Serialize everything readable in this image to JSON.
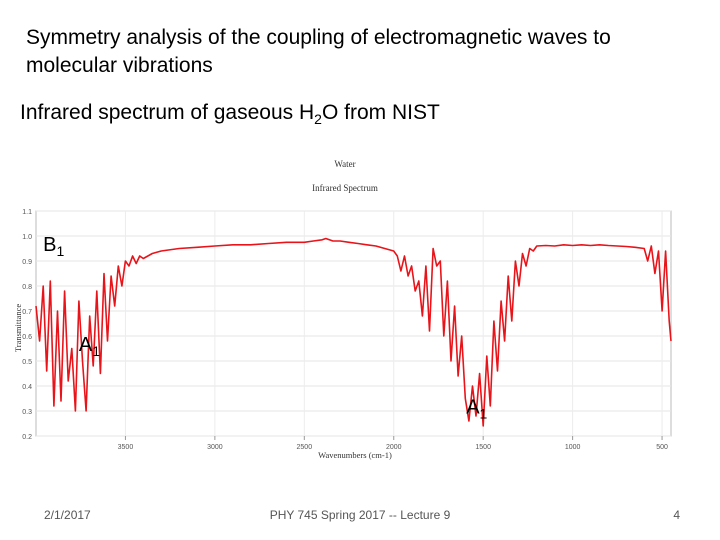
{
  "slide": {
    "title": "Symmetry analysis of the coupling of electromagnetic waves to molecular vibrations",
    "subtitle_pre": "Infrared spectrum of gaseous H",
    "subtitle_sub": "2",
    "subtitle_post": "O from NIST"
  },
  "footer": {
    "date": "2/1/2017",
    "center": "PHY 745  Spring 2017 -- Lecture 9",
    "page": "4"
  },
  "chart_data": {
    "type": "line",
    "title": "Water",
    "subtitle": "Infrared Spectrum",
    "xlabel": "Wavenumbers (cm-1)",
    "ylabel": "Transmittance",
    "xlim": [
      4000,
      450
    ],
    "ylim": [
      0.2,
      1.1
    ],
    "x_ticks": [
      "3500",
      "3000",
      "2500",
      "2000",
      "1500",
      "1000",
      "500"
    ],
    "y_ticks": [
      "1.1",
      "1.0",
      "0.9",
      "0.8",
      "0.7",
      "0.6",
      "0.5",
      "0.4",
      "0.3",
      "0.2"
    ],
    "line_color": "#e8141a",
    "annotations": [
      {
        "label": "B",
        "sub": "1",
        "x": 3960,
        "y": 0.94
      },
      {
        "label": "A",
        "sub": "1",
        "x": 3760,
        "y": 0.54
      },
      {
        "label": "A",
        "sub": "1",
        "x": 1595,
        "y": 0.29
      }
    ],
    "series": [
      {
        "x": [
          4000,
          3980,
          3960,
          3940,
          3920,
          3900,
          3880,
          3860,
          3840,
          3820,
          3800,
          3780,
          3760,
          3740,
          3720,
          3700,
          3680,
          3660,
          3640,
          3620,
          3600,
          3580,
          3560,
          3540,
          3520,
          3500,
          3480,
          3460,
          3440,
          3420,
          3400,
          3350,
          3300,
          3200,
          3100,
          3000,
          2900,
          2800,
          2700,
          2600,
          2500,
          2450,
          2400,
          2380,
          2360,
          2340,
          2300,
          2250,
          2200,
          2150,
          2100,
          2050,
          2000,
          1980,
          1960,
          1940,
          1920,
          1900,
          1880,
          1860,
          1840,
          1820,
          1800,
          1780,
          1760,
          1740,
          1720,
          1700,
          1680,
          1660,
          1640,
          1620,
          1600,
          1580,
          1560,
          1540,
          1520,
          1500,
          1480,
          1460,
          1440,
          1420,
          1400,
          1380,
          1360,
          1340,
          1320,
          1300,
          1280,
          1260,
          1240,
          1220,
          1200,
          1150,
          1100,
          1050,
          1000,
          950,
          900,
          850,
          800,
          750,
          700,
          650,
          600,
          580,
          560,
          540,
          520,
          500,
          480,
          460,
          450
        ],
        "y": [
          0.72,
          0.58,
          0.8,
          0.46,
          0.82,
          0.32,
          0.7,
          0.34,
          0.78,
          0.42,
          0.55,
          0.3,
          0.74,
          0.5,
          0.3,
          0.68,
          0.48,
          0.78,
          0.45,
          0.85,
          0.58,
          0.84,
          0.72,
          0.88,
          0.8,
          0.9,
          0.88,
          0.92,
          0.89,
          0.92,
          0.91,
          0.93,
          0.94,
          0.95,
          0.955,
          0.96,
          0.965,
          0.965,
          0.97,
          0.975,
          0.975,
          0.98,
          0.985,
          0.99,
          0.985,
          0.98,
          0.98,
          0.975,
          0.97,
          0.965,
          0.96,
          0.95,
          0.94,
          0.92,
          0.86,
          0.92,
          0.84,
          0.88,
          0.78,
          0.82,
          0.68,
          0.88,
          0.62,
          0.95,
          0.88,
          0.9,
          0.6,
          0.82,
          0.5,
          0.72,
          0.44,
          0.6,
          0.35,
          0.26,
          0.4,
          0.28,
          0.45,
          0.24,
          0.52,
          0.32,
          0.66,
          0.46,
          0.74,
          0.58,
          0.84,
          0.66,
          0.9,
          0.8,
          0.93,
          0.88,
          0.95,
          0.94,
          0.96,
          0.962,
          0.96,
          0.965,
          0.962,
          0.965,
          0.962,
          0.965,
          0.962,
          0.96,
          0.958,
          0.955,
          0.95,
          0.9,
          0.96,
          0.85,
          0.94,
          0.7,
          0.94,
          0.66,
          0.58
        ]
      }
    ]
  }
}
